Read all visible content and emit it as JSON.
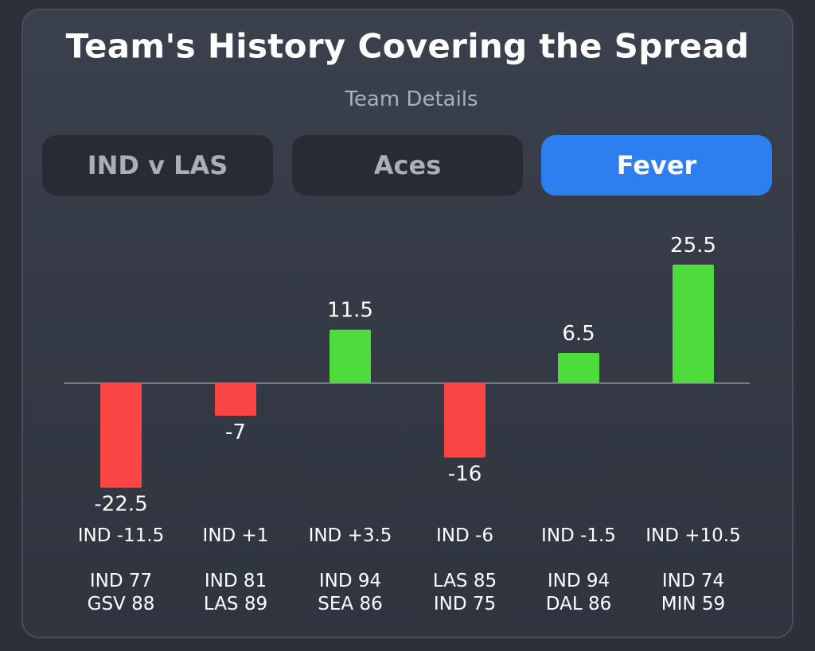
{
  "header": {
    "title": "Team's History Covering the Spread",
    "subtitle": "Team Details"
  },
  "tabs": [
    {
      "label": "IND v LAS",
      "active": false
    },
    {
      "label": "Aces",
      "active": false
    },
    {
      "label": "Fever",
      "active": true
    }
  ],
  "colors": {
    "positive": "#4fdb3b",
    "negative": "#fa4545",
    "active_tab": "#2d7ff0",
    "baseline": "#6f7888"
  },
  "chart_data": {
    "type": "bar",
    "title": "Team's History Covering the Spread",
    "values": [
      -22.5,
      -7,
      11.5,
      -16,
      6.5,
      25.5
    ],
    "value_labels": [
      "-22.5",
      "-7",
      "11.5",
      "-16",
      "6.5",
      "25.5"
    ],
    "spreads": [
      "IND -11.5",
      "IND +1",
      "IND +3.5",
      "IND -6",
      "IND -1.5",
      "IND +10.5"
    ],
    "scores": [
      [
        "IND 77",
        "GSV 88"
      ],
      [
        "IND 81",
        "LAS 89"
      ],
      [
        "IND 94",
        "SEA 86"
      ],
      [
        "LAS 85",
        "IND 75"
      ],
      [
        "IND 94",
        "DAL 86"
      ],
      [
        "IND 74",
        "MIN 59"
      ]
    ],
    "xlabel": "",
    "ylabel": "",
    "grid": false
  }
}
